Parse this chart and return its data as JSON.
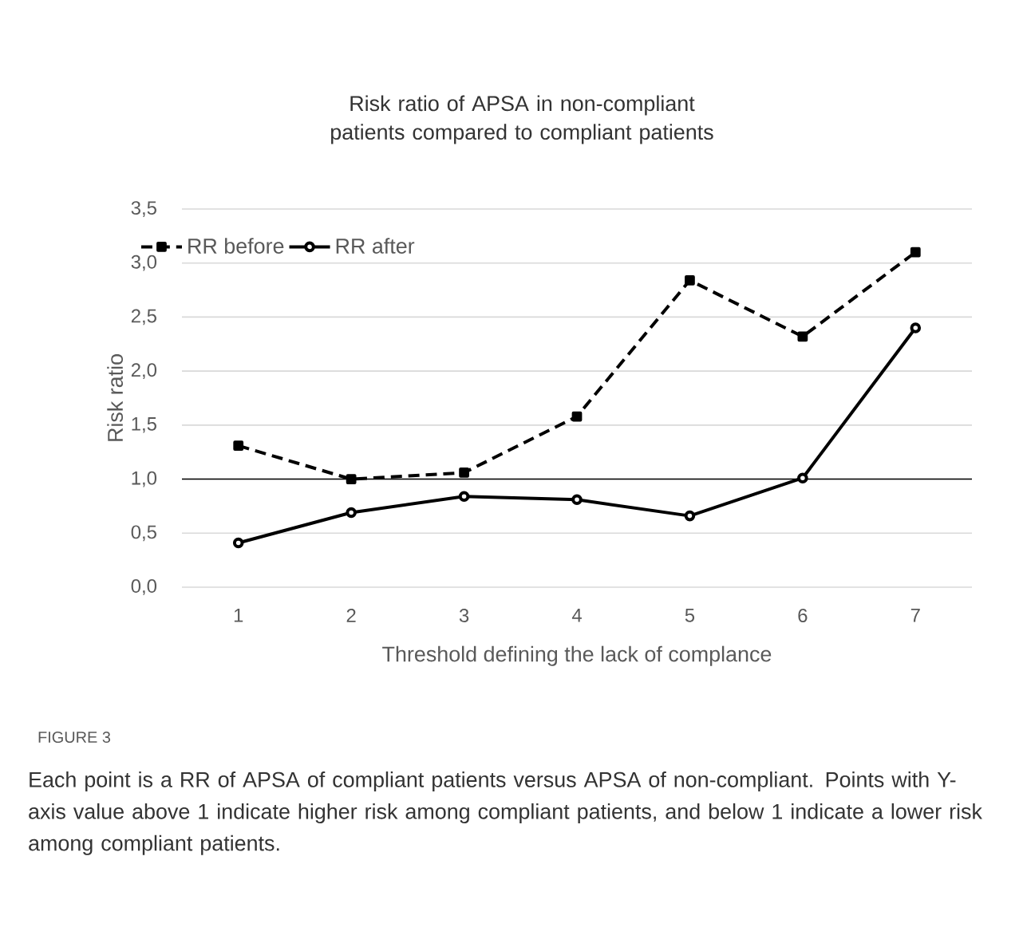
{
  "chart_data": {
    "type": "line",
    "title": "Risk ratio of APSA in non-compliant patients compared to compliant patients",
    "xlabel": "Threshold defining the lack of complance",
    "ylabel": "Risk ratio",
    "categories": [
      "1",
      "2",
      "3",
      "4",
      "5",
      "6",
      "7"
    ],
    "series": [
      {
        "name": "RR before",
        "color": "#000000",
        "marker": "square",
        "line_style": "dashed",
        "values": [
          1.31,
          1.0,
          1.06,
          1.58,
          2.84,
          2.32,
          3.1
        ]
      },
      {
        "name": "RR after",
        "color": "#000000",
        "marker": "circle",
        "line_style": "solid",
        "values": [
          0.41,
          0.69,
          0.84,
          0.81,
          0.66,
          1.01,
          2.4
        ]
      }
    ],
    "ylim": [
      0,
      3.5
    ],
    "yticks": [
      {
        "value": 0,
        "label": "0,0"
      },
      {
        "value": 0.5,
        "label": "0,5"
      },
      {
        "value": 1,
        "label": "1,0"
      },
      {
        "value": 1.5,
        "label": "1,5"
      },
      {
        "value": 2,
        "label": "2,0"
      },
      {
        "value": 2.5,
        "label": "2,5"
      },
      {
        "value": 3,
        "label": "3,0"
      },
      {
        "value": 3.5,
        "label": "3,5"
      }
    ],
    "grid": "y",
    "legend": "top left",
    "ref_lines": [
      {
        "axis": "y",
        "value": 1,
        "color": "#000000"
      }
    ],
    "annotations": [
      "FIGURE 3",
      "Each point is a RR of APSA of compliant patients versus APSA of non-compliant. Points with Y-axis value above 1 indicate higher risk among compliant patients, and below 1 indicate a lower risk among compliant patients."
    ]
  }
}
